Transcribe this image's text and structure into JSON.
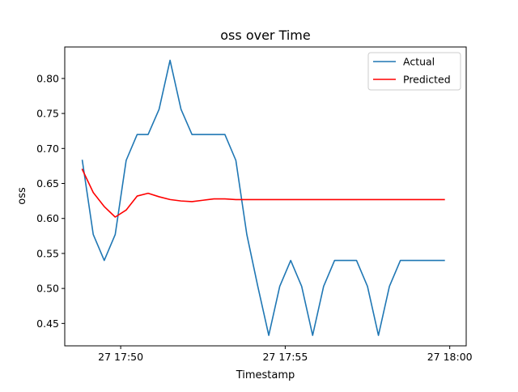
{
  "chart_data": {
    "type": "line",
    "title": "oss over Time",
    "xlabel": "Timestamp",
    "ylabel": "oss",
    "xlim": [
      "17:48:18",
      "18:00:30"
    ],
    "ylim": [
      0.418,
      0.845
    ],
    "x_ticks": [
      {
        "t": "17:50:00",
        "label": "27 17:50"
      },
      {
        "t": "17:55:00",
        "label": "27 17:55"
      },
      {
        "t": "18:00:00",
        "label": "27 18:00"
      }
    ],
    "y_ticks": [
      "0.45",
      "0.50",
      "0.55",
      "0.60",
      "0.65",
      "0.70",
      "0.75",
      "0.80"
    ],
    "grid": false,
    "legend_position": "top-right",
    "x": [
      "17:48:50",
      "17:49:10",
      "17:49:30",
      "17:49:50",
      "17:50:10",
      "17:50:30",
      "17:50:50",
      "17:51:10",
      "17:51:30",
      "17:51:50",
      "17:52:10",
      "17:52:30",
      "17:52:50",
      "17:53:10",
      "17:53:30",
      "17:53:50",
      "17:54:10",
      "17:54:30",
      "17:54:50",
      "17:55:10",
      "17:55:30",
      "17:55:50",
      "17:56:10",
      "17:56:30",
      "17:56:50",
      "17:57:10",
      "17:57:30",
      "17:57:50",
      "17:58:10",
      "17:58:30",
      "17:58:50",
      "17:59:10",
      "17:59:30",
      "17:59:50"
    ],
    "series": [
      {
        "name": "Actual",
        "color": "#1f77b4",
        "values": [
          0.683,
          0.577,
          0.54,
          0.577,
          0.683,
          0.72,
          0.72,
          0.756,
          0.826,
          0.756,
          0.72,
          0.72,
          0.72,
          0.72,
          0.683,
          0.577,
          0.503,
          0.433,
          0.503,
          0.54,
          0.503,
          0.433,
          0.503,
          0.54,
          0.54,
          0.54,
          0.503,
          0.433,
          0.503,
          0.54,
          0.54,
          0.54,
          0.54,
          0.54
        ]
      },
      {
        "name": "Predicted",
        "color": "#ff0000",
        "values": [
          0.67,
          0.637,
          0.617,
          0.602,
          0.612,
          0.632,
          0.636,
          0.631,
          0.627,
          0.625,
          0.624,
          0.626,
          0.628,
          0.628,
          0.627,
          0.627,
          0.627,
          0.627,
          0.627,
          0.627,
          0.627,
          0.627,
          0.627,
          0.627,
          0.627,
          0.627,
          0.627,
          0.627,
          0.627,
          0.627,
          0.627,
          0.627,
          0.627,
          0.627
        ]
      }
    ]
  }
}
